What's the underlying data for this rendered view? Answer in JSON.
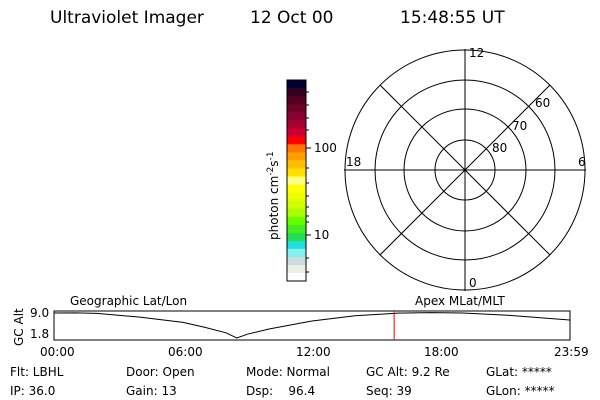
{
  "header": {
    "instrument": "Ultraviolet Imager",
    "date": "12 Oct 00",
    "time": "15:48:55 UT"
  },
  "colorbar": {
    "label": "photon cm",
    "exp1": "-2",
    "mid": "s",
    "exp2": "-1",
    "ticks": [
      "100",
      "10"
    ],
    "colors": [
      "#000033",
      "#330022",
      "#550022",
      "#700025",
      "#880030",
      "#aa0030",
      "#cc0030",
      "#ff0000",
      "#ff7700",
      "#ffa000",
      "#ffc000",
      "#ffe000",
      "#ffff80",
      "#ffff00",
      "#eeff00",
      "#ccff00",
      "#aaff00",
      "#66ff00",
      "#44ee22",
      "#22dd55",
      "#22dddd",
      "#88eeee",
      "#ccdddd",
      "#e8f0e8",
      "#ffffff"
    ]
  },
  "polar": {
    "mlt_labels": {
      "top": "12",
      "bottom": "0",
      "left": "18",
      "right": "6"
    },
    "lat_labels": [
      "60",
      "70",
      "80"
    ]
  },
  "chart_data": {
    "type": "line",
    "ylabel": "GC Alt",
    "yticks": [
      "9.0",
      "1.8"
    ],
    "ylim": [
      1.8,
      9.0
    ],
    "xticks": [
      "00:00",
      "06:00",
      "12:00",
      "18:00",
      "23:59"
    ],
    "xlim": [
      0,
      24
    ],
    "left_label": "Geographic Lat/Lon",
    "right_label": "Apex MLat/MLT",
    "x": [
      0,
      1,
      2,
      4,
      6,
      7,
      8,
      8.5,
      9,
      10,
      12,
      14,
      16,
      17.5,
      19,
      21,
      23.98
    ],
    "values": [
      9.0,
      9.05,
      8.9,
      7.8,
      6.3,
      4.9,
      3.3,
      1.8,
      2.9,
      4.4,
      6.7,
      8.2,
      8.95,
      9.1,
      9.0,
      8.4,
      7.0
    ],
    "current_time_hours": 15.82,
    "current_marker_color": "#ff0000"
  },
  "status": {
    "flt": "Flt: LBHL",
    "door": "Door: Open",
    "mode": "Mode: Normal",
    "gcalt": "GC Alt: 9.2 Re",
    "glat": "GLat: *****",
    "ip": "IP: 36.0",
    "gain": "Gain: 13",
    "dsp": "Dsp:    96.4",
    "seq": "Seq: 39",
    "glon": "GLon: *****"
  }
}
